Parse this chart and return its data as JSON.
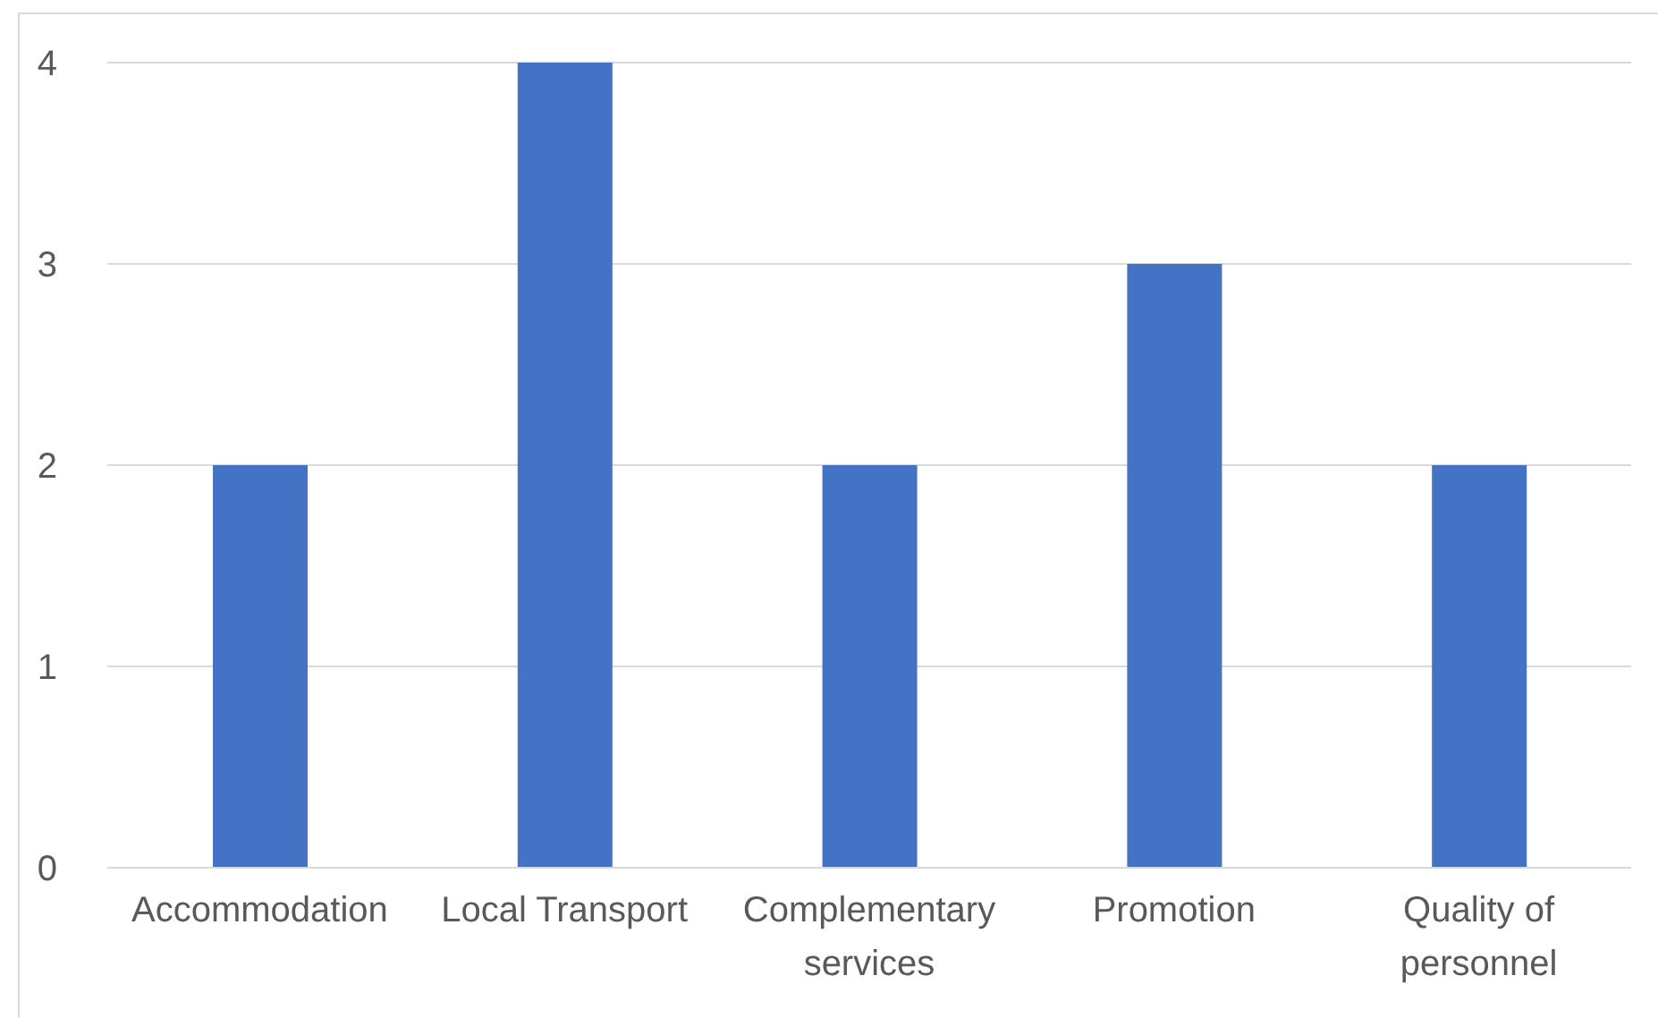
{
  "chart_data": {
    "type": "bar",
    "categories": [
      "Accommodation",
      "Local Transport",
      "Complementary services",
      "Promotion",
      "Quality of personnel"
    ],
    "values": [
      2,
      4,
      2,
      3,
      2
    ],
    "color": "#4472c4",
    "ylim": [
      0,
      4
    ],
    "yticks": [
      0,
      1,
      2,
      3,
      4
    ],
    "grid": "y"
  }
}
